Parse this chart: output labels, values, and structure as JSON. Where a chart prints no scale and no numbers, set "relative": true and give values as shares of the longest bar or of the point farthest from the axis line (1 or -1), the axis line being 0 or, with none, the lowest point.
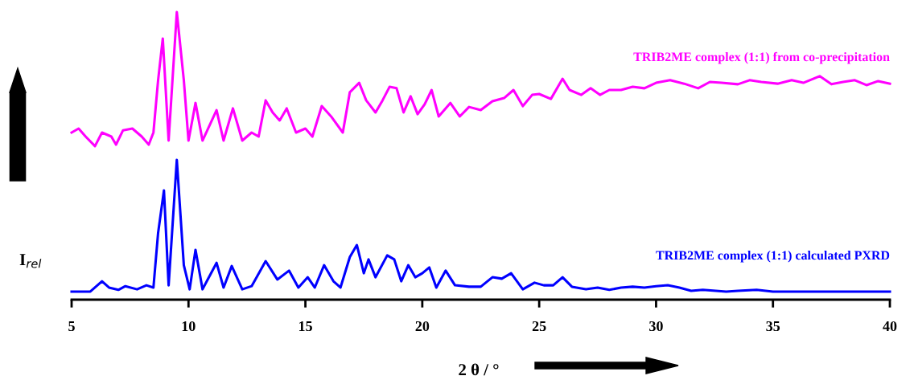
{
  "chart_data": {
    "type": "line",
    "relative": true,
    "xlabel": "2 θ / °",
    "ylabel": "I$_{rel}$",
    "xlim": [
      5,
      40
    ],
    "xticks": [
      5,
      10,
      15,
      20,
      25,
      30,
      35,
      40
    ],
    "grid": false,
    "legend": false,
    "marker": "none",
    "line_style": "solid",
    "series": [
      {
        "name": "TRIB2ME complex (1:1) from co-precipitation",
        "color": "#ff00ff",
        "x": [
          5.0,
          5.3,
          5.6,
          6.0,
          6.3,
          6.7,
          6.9,
          7.2,
          7.6,
          8.0,
          8.3,
          8.5,
          8.7,
          8.9,
          9.15,
          9.5,
          9.8,
          10.0,
          10.3,
          10.6,
          11.2,
          11.5,
          11.9,
          12.3,
          12.7,
          13.0,
          13.3,
          13.6,
          13.9,
          14.2,
          14.6,
          15.0,
          15.3,
          15.7,
          16.1,
          16.6,
          16.9,
          17.3,
          17.6,
          18.0,
          18.3,
          18.6,
          18.9,
          19.2,
          19.5,
          19.8,
          20.1,
          20.4,
          20.7,
          21.2,
          21.6,
          22.0,
          22.5,
          23.0,
          23.5,
          23.9,
          24.3,
          24.7,
          25.0,
          25.5,
          26.0,
          26.3,
          26.8,
          27.2,
          27.6,
          28.0,
          28.5,
          29.0,
          29.5,
          30.0,
          30.6,
          31.2,
          31.8,
          32.3,
          32.8,
          33.5,
          34.0,
          34.5,
          35.2,
          35.8,
          36.3,
          37.0,
          37.5,
          38.0,
          38.5,
          39.0,
          39.5,
          40.0
        ],
        "values": [
          0.581,
          0.595,
          0.567,
          0.534,
          0.581,
          0.567,
          0.539,
          0.589,
          0.595,
          0.567,
          0.539,
          0.581,
          0.763,
          0.908,
          0.553,
          1.0,
          0.763,
          0.553,
          0.684,
          0.553,
          0.659,
          0.553,
          0.665,
          0.553,
          0.581,
          0.567,
          0.693,
          0.651,
          0.623,
          0.665,
          0.581,
          0.595,
          0.567,
          0.673,
          0.637,
          0.581,
          0.721,
          0.754,
          0.693,
          0.651,
          0.693,
          0.74,
          0.735,
          0.651,
          0.707,
          0.645,
          0.679,
          0.729,
          0.637,
          0.684,
          0.637,
          0.67,
          0.659,
          0.69,
          0.701,
          0.729,
          0.673,
          0.712,
          0.715,
          0.698,
          0.768,
          0.729,
          0.712,
          0.735,
          0.712,
          0.729,
          0.729,
          0.74,
          0.735,
          0.754,
          0.763,
          0.751,
          0.735,
          0.757,
          0.754,
          0.749,
          0.763,
          0.757,
          0.751,
          0.763,
          0.754,
          0.777,
          0.749,
          0.757,
          0.763,
          0.746,
          0.76,
          0.751
        ]
      },
      {
        "name": "TRIB2ME complex (1:1) calculated PXRD",
        "color": "#0000ff",
        "x": [
          5.0,
          5.8,
          6.3,
          6.6,
          7.0,
          7.3,
          7.8,
          8.2,
          8.5,
          8.7,
          8.95,
          9.15,
          9.5,
          9.8,
          10.05,
          10.3,
          10.6,
          11.2,
          11.5,
          11.85,
          12.3,
          12.7,
          13.3,
          13.8,
          14.3,
          14.7,
          15.1,
          15.4,
          15.8,
          16.2,
          16.5,
          16.9,
          17.2,
          17.5,
          17.7,
          18.0,
          18.5,
          18.8,
          19.1,
          19.4,
          19.7,
          20.0,
          20.3,
          20.6,
          21.0,
          21.4,
          22.0,
          22.5,
          23.0,
          23.4,
          23.8,
          24.3,
          24.8,
          25.2,
          25.6,
          26.0,
          26.4,
          27.0,
          27.5,
          28.0,
          28.5,
          29.0,
          29.5,
          30.0,
          30.5,
          31.0,
          31.5,
          32.0,
          33.0,
          33.5,
          34.3,
          35.0,
          36.0,
          37.5,
          40.0
        ],
        "values": [
          0.028,
          0.028,
          0.064,
          0.042,
          0.034,
          0.047,
          0.036,
          0.05,
          0.042,
          0.232,
          0.38,
          0.05,
          0.486,
          0.12,
          0.036,
          0.173,
          0.036,
          0.128,
          0.042,
          0.117,
          0.036,
          0.047,
          0.134,
          0.07,
          0.101,
          0.042,
          0.078,
          0.042,
          0.12,
          0.064,
          0.042,
          0.148,
          0.19,
          0.092,
          0.14,
          0.078,
          0.154,
          0.14,
          0.064,
          0.12,
          0.078,
          0.092,
          0.112,
          0.042,
          0.101,
          0.05,
          0.045,
          0.045,
          0.078,
          0.073,
          0.092,
          0.036,
          0.059,
          0.05,
          0.05,
          0.078,
          0.045,
          0.036,
          0.042,
          0.034,
          0.042,
          0.045,
          0.042,
          0.047,
          0.05,
          0.042,
          0.031,
          0.034,
          0.028,
          0.031,
          0.034,
          0.028,
          0.028,
          0.028,
          0.028
        ]
      }
    ]
  }
}
